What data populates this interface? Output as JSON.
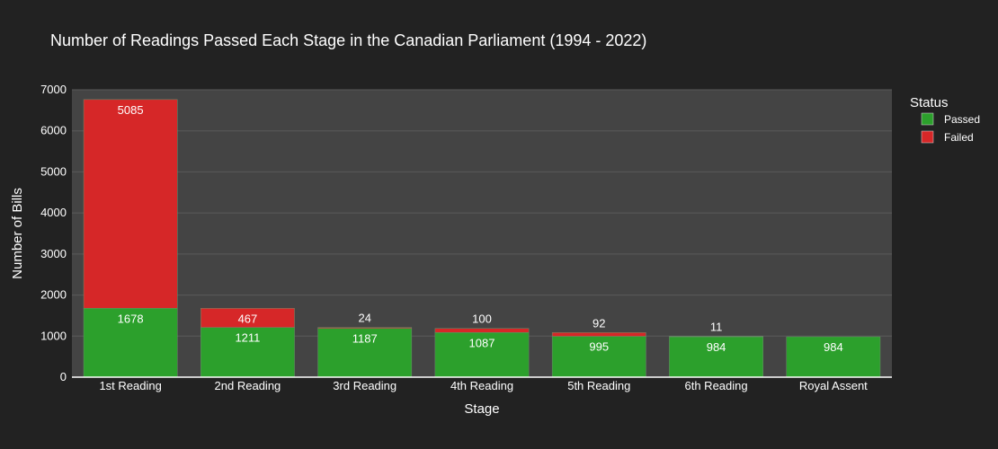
{
  "chart_data": {
    "type": "bar",
    "barmode": "stack",
    "title": "Number of Readings Passed Each Stage in the Canadian Parliament (1994 - 2022)",
    "xlabel": "Stage",
    "ylabel": "Number of Bills",
    "categories": [
      "1st Reading",
      "2nd Reading",
      "3rd Reading",
      "4th Reading",
      "5th Reading",
      "6th Reading",
      "Royal Assent"
    ],
    "series": [
      {
        "name": "Passed",
        "color": "#2ca02c",
        "values": [
          1678,
          1211,
          1187,
          1087,
          995,
          984,
          984
        ]
      },
      {
        "name": "Failed",
        "color": "#d62728",
        "values": [
          5085,
          467,
          24,
          100,
          92,
          11,
          null
        ]
      }
    ],
    "ylim": [
      0,
      7000
    ],
    "yticks": [
      0,
      1000,
      2000,
      3000,
      4000,
      5000,
      6000,
      7000
    ],
    "grid": true,
    "legend": {
      "title": "Status",
      "placement": "top-right"
    },
    "colors": {
      "background": "#222222",
      "plot_background": "#444444",
      "gridline": "#5a5a5a",
      "text": "#ffffff"
    }
  }
}
